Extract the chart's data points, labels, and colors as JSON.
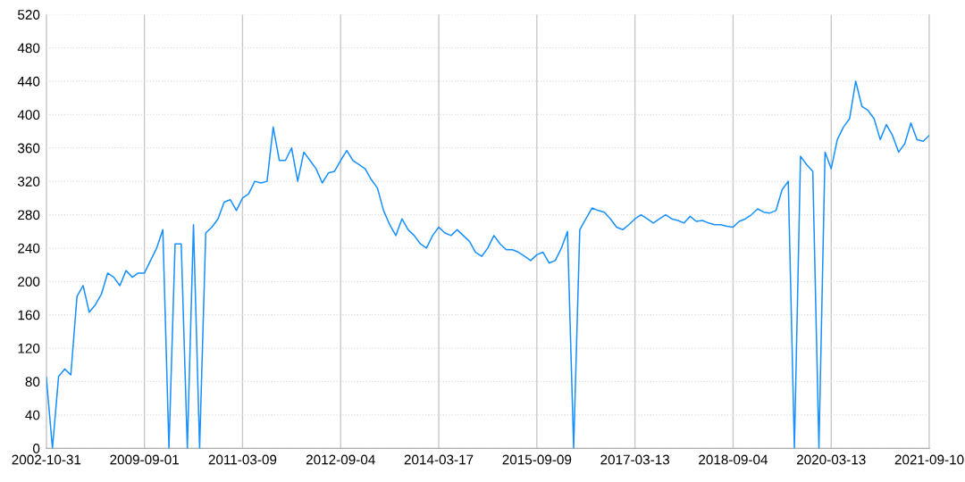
{
  "chart_data": {
    "type": "line",
    "categories": [
      "2002-10-31",
      null,
      null,
      null,
      null,
      null,
      null,
      null,
      null,
      null,
      null,
      null,
      null,
      null,
      null,
      null,
      "2009-09-01",
      null,
      null,
      null,
      null,
      null,
      null,
      null,
      null,
      null,
      null,
      null,
      null,
      null,
      null,
      null,
      "2011-03-09",
      null,
      null,
      null,
      null,
      null,
      null,
      null,
      null,
      null,
      null,
      null,
      null,
      null,
      null,
      null,
      "2012-09-04",
      null,
      null,
      null,
      null,
      null,
      null,
      null,
      null,
      null,
      null,
      null,
      null,
      null,
      null,
      null,
      "2014-03-17",
      null,
      null,
      null,
      null,
      null,
      null,
      null,
      null,
      null,
      null,
      null,
      null,
      null,
      null,
      null,
      "2015-09-09",
      null,
      null,
      null,
      null,
      null,
      null,
      null,
      null,
      null,
      null,
      null,
      null,
      null,
      null,
      null,
      "2017-03-13",
      null,
      null,
      null,
      null,
      null,
      null,
      null,
      null,
      null,
      null,
      null,
      null,
      null,
      null,
      null,
      "2018-09-04",
      null,
      null,
      null,
      null,
      null,
      null,
      null,
      null,
      null,
      null,
      null,
      null,
      null,
      null,
      null,
      "2020-03-13",
      null,
      null,
      null,
      null,
      null,
      null,
      null,
      null,
      null,
      null,
      null,
      null,
      null,
      null,
      null,
      "2021-09-10"
    ],
    "series": [
      {
        "color": "#1890ff",
        "values": [
          85,
          0,
          86,
          95,
          88,
          182,
          195,
          163,
          172,
          185,
          210,
          205,
          195,
          213,
          205,
          210,
          210,
          225,
          240,
          262,
          0,
          245,
          245,
          0,
          268,
          0,
          258,
          265,
          275,
          295,
          298,
          285,
          300,
          305,
          320,
          318,
          320,
          385,
          345,
          345,
          360,
          320,
          355,
          345,
          335,
          318,
          330,
          332,
          345,
          357,
          345,
          340,
          335,
          322,
          312,
          285,
          268,
          255,
          275,
          262,
          255,
          245,
          240,
          255,
          265,
          258,
          255,
          262,
          255,
          248,
          235,
          230,
          240,
          255,
          245,
          238,
          238,
          235,
          230,
          225,
          232,
          235,
          222,
          225,
          240,
          260,
          0,
          262,
          275,
          288,
          285,
          283,
          275,
          265,
          262,
          268,
          275,
          280,
          275,
          270,
          275,
          280,
          275,
          273,
          270,
          278,
          272,
          273,
          270,
          268,
          268,
          266,
          265,
          272,
          275,
          280,
          287,
          283,
          282,
          285,
          310,
          320,
          0,
          350,
          340,
          332,
          0,
          355,
          335,
          370,
          385,
          395,
          440,
          410,
          405,
          395,
          370,
          388,
          375,
          355,
          365,
          390,
          370,
          368,
          375
        ]
      }
    ],
    "ylim": [
      0,
      520
    ],
    "yticks": [
      0,
      40,
      80,
      120,
      160,
      200,
      240,
      280,
      320,
      360,
      400,
      440,
      480,
      520
    ],
    "grid": true,
    "marker": "none",
    "line_style": "solid"
  }
}
